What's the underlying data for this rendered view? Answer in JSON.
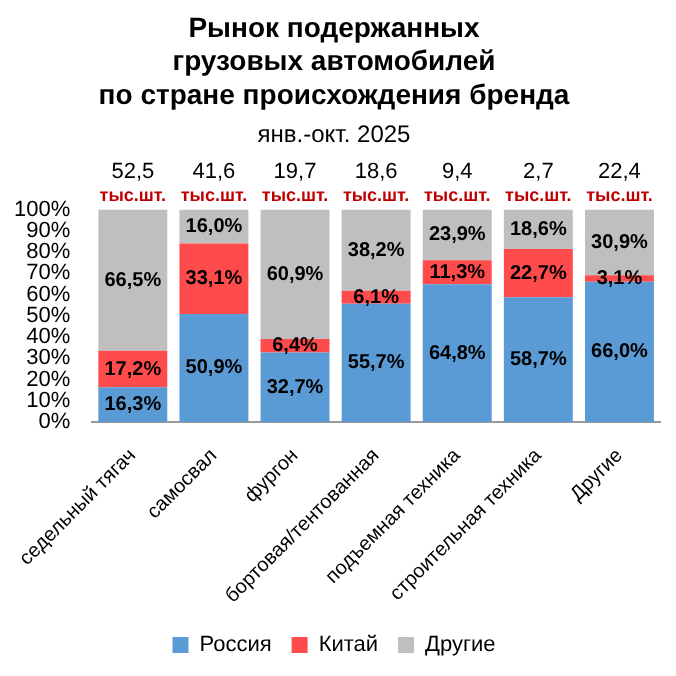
{
  "chart_data": {
    "type": "bar",
    "title": "Рынок подержанных\nгрузовых автомобилей\nпо стране происхождения бренда",
    "subtitle": "янв.-окт. 2025",
    "categories": [
      "седельный тягач",
      "самосвал",
      "фургон",
      "бортовая/тентованная",
      "подъемная техника",
      "строительная техника",
      "Другие"
    ],
    "stacked": true,
    "legend": "bottom",
    "series": [
      {
        "name": "Россия",
        "color": "#5b9bd5",
        "values": [
          16.3,
          50.9,
          32.7,
          55.7,
          64.8,
          58.7,
          66.0
        ],
        "value_labels": [
          "16,3%",
          "50,9%",
          "32,7%",
          "55,7%",
          "64,8%",
          "58,7%",
          "66,0%"
        ]
      },
      {
        "name": "Китай",
        "color": "#ff4b4b",
        "values": [
          17.2,
          33.1,
          6.4,
          6.1,
          11.3,
          22.7,
          3.1
        ],
        "value_labels": [
          "17,2%",
          "33,1%",
          "6,4%",
          "6,1%",
          "11,3%",
          "22,7%",
          "3,1%"
        ]
      },
      {
        "name": "Другие",
        "color": "#bfbfbf",
        "values": [
          66.5,
          16.0,
          60.9,
          38.2,
          23.9,
          18.6,
          30.9
        ],
        "value_labels": [
          "66,5%",
          "16,0%",
          "60,9%",
          "38,2%",
          "23,9%",
          "18,6%",
          "30,9%"
        ]
      }
    ],
    "ylim": [
      0,
      100
    ],
    "yticks": [
      {
        "value": 0,
        "label": "0%"
      },
      {
        "value": 10,
        "label": "10%"
      },
      {
        "value": 20,
        "label": "20%"
      },
      {
        "value": 30,
        "label": "30%"
      },
      {
        "value": 40,
        "label": "40%"
      },
      {
        "value": 50,
        "label": "50%"
      },
      {
        "value": 60,
        "label": "60%"
      },
      {
        "value": 70,
        "label": "70%"
      },
      {
        "value": 80,
        "label": "80%"
      },
      {
        "value": 90,
        "label": "90%"
      },
      {
        "value": 100,
        "label": "100%"
      }
    ],
    "annotations": [
      "52,5 тыс.шт.",
      "41,6 тыс.шт.",
      "19,7 тыс.шт.",
      "18,6 тыс.шт.",
      "9,4 тыс.шт.",
      "2,7 тыс.шт.",
      "22,4 тыс.шт."
    ]
  }
}
